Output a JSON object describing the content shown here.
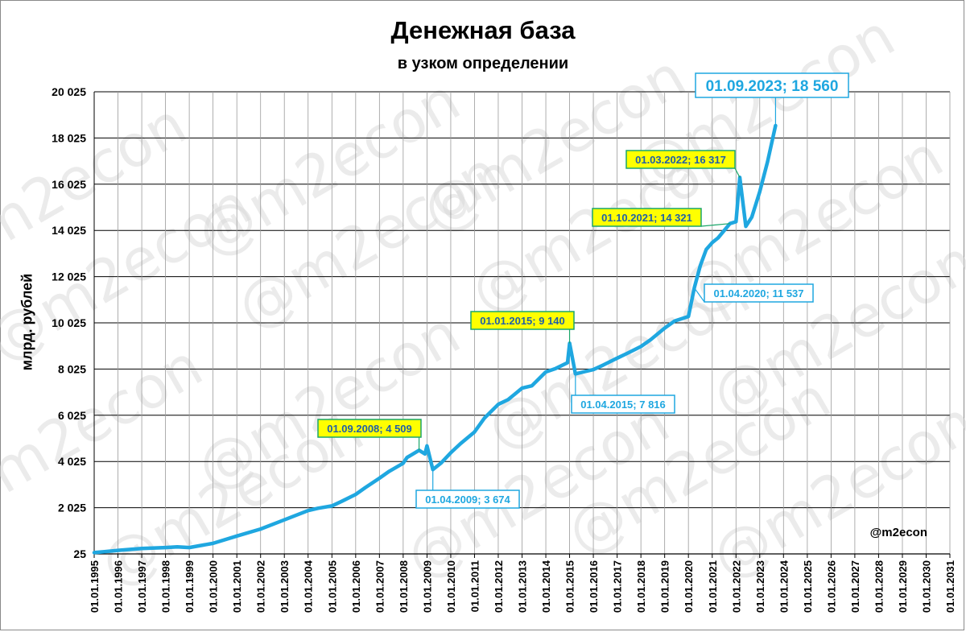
{
  "watermark": "@m2econ",
  "chart_data": {
    "type": "line",
    "title": "Денежная база",
    "subtitle": "в узком определении",
    "xlabel": "",
    "ylabel": "млрд. рублей",
    "credit": "@m2econ",
    "ylim": [
      25,
      20025
    ],
    "yticks": [
      "25",
      "2 025",
      "4 025",
      "6 025",
      "8 025",
      "10 025",
      "12 025",
      "14 025",
      "16 025",
      "18 025",
      "20 025"
    ],
    "ytick_values": [
      25,
      2025,
      4025,
      6025,
      8025,
      10025,
      12025,
      14025,
      16025,
      18025,
      20025
    ],
    "xticks": [
      "01.01.1995",
      "01.01.1996",
      "01.01.1997",
      "01.01.1998",
      "01.01.1999",
      "01.01.2000",
      "01.01.2001",
      "01.01.2002",
      "01.01.2003",
      "01.01.2004",
      "01.01.2005",
      "01.01.2006",
      "01.01.2007",
      "01.01.2008",
      "01.01.2009",
      "01.01.2010",
      "01.01.2011",
      "01.01.2012",
      "01.01.2013",
      "01.01.2014",
      "01.01.2015",
      "01.01.2016",
      "01.01.2017",
      "01.01.2018",
      "01.01.2019",
      "01.01.2020",
      "01.01.2021",
      "01.01.2022",
      "01.01.2023",
      "01.01.2024",
      "01.01.2025",
      "01.01.2026",
      "01.01.2027",
      "01.01.2028",
      "01.01.2029",
      "01.01.2030",
      "01.01.2031"
    ],
    "xlim": [
      "1995-01-01",
      "2031-01-01"
    ],
    "grid": true,
    "series": [
      {
        "color": "#1fa7e0",
        "x": [
          "1995-01-01",
          "1996-01-01",
          "1997-01-01",
          "1998-01-01",
          "1998-07-01",
          "1999-01-01",
          "2000-01-01",
          "2001-01-01",
          "2002-01-01",
          "2003-01-01",
          "2004-01-01",
          "2004-06-01",
          "2005-01-01",
          "2005-06-01",
          "2006-01-01",
          "2006-06-01",
          "2007-01-01",
          "2007-06-01",
          "2008-01-01",
          "2008-03-01",
          "2008-09-01",
          "2008-12-01",
          "2009-01-01",
          "2009-04-01",
          "2009-08-01",
          "2010-01-01",
          "2010-06-01",
          "2011-01-01",
          "2011-06-01",
          "2012-01-01",
          "2012-06-01",
          "2013-01-01",
          "2013-06-01",
          "2014-01-01",
          "2014-06-01",
          "2014-12-01",
          "2015-01-01",
          "2015-04-01",
          "2015-08-01",
          "2016-01-01",
          "2016-06-01",
          "2017-01-01",
          "2017-06-01",
          "2018-01-01",
          "2018-06-01",
          "2019-01-01",
          "2019-06-01",
          "2020-01-01",
          "2020-04-01",
          "2020-07-01",
          "2020-10-01",
          "2021-01-01",
          "2021-04-01",
          "2021-10-01",
          "2022-01-01",
          "2022-03-01",
          "2022-06-01",
          "2022-09-01",
          "2023-01-01",
          "2023-05-01",
          "2023-09-01"
        ],
        "values": [
          80,
          180,
          260,
          300,
          330,
          300,
          480,
          800,
          1100,
          1500,
          1900,
          2000,
          2100,
          2300,
          2600,
          2900,
          3300,
          3600,
          3950,
          4200,
          4509,
          4350,
          4700,
          3674,
          3950,
          4400,
          4800,
          5300,
          5900,
          6500,
          6700,
          7200,
          7300,
          7900,
          8050,
          8300,
          9140,
          7816,
          7900,
          8000,
          8200,
          8500,
          8700,
          9000,
          9300,
          9800,
          10100,
          10300,
          11537,
          12500,
          13200,
          13500,
          13700,
          14321,
          14400,
          16317,
          14200,
          14600,
          15700,
          17000,
          18560
        ]
      }
    ],
    "annotations": [
      {
        "label": "01.09.2008; 4 509",
        "x": "2008-09-01",
        "y": 4509,
        "style": "yellow"
      },
      {
        "label": "01.04.2009; 3 674",
        "x": "2009-04-01",
        "y": 3674,
        "style": "white"
      },
      {
        "label": "01.01.2015; 9 140",
        "x": "2015-01-01",
        "y": 9140,
        "style": "yellow"
      },
      {
        "label": "01.04.2015; 7 816",
        "x": "2015-04-01",
        "y": 7816,
        "style": "white"
      },
      {
        "label": "01.04.2020; 11 537",
        "x": "2020-04-01",
        "y": 11537,
        "style": "white"
      },
      {
        "label": "01.10.2021; 14 321",
        "x": "2021-10-01",
        "y": 14321,
        "style": "yellow"
      },
      {
        "label": "01.03.2022; 16 317",
        "x": "2022-03-01",
        "y": 16317,
        "style": "yellow"
      },
      {
        "label": "01.09.2023; 18 560",
        "x": "2023-09-01",
        "y": 18560,
        "style": "white-big"
      }
    ]
  }
}
